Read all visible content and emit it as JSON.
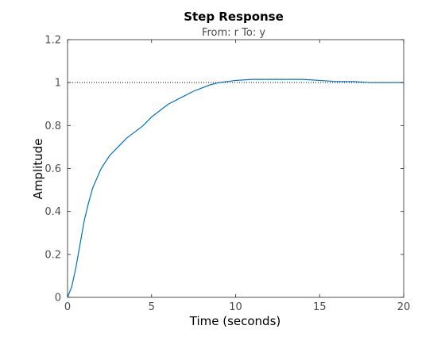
{
  "chart_data": {
    "type": "line",
    "title": "Step Response",
    "subtitle": "From: r  To: y",
    "xlabel": "Time (seconds)",
    "ylabel": "Amplitude",
    "xlim": [
      0,
      20
    ],
    "ylim": [
      0,
      1.2
    ],
    "xticks": [
      0,
      5,
      10,
      15,
      20
    ],
    "yticks": [
      0,
      0.2,
      0.4,
      0.6,
      0.8,
      1,
      1.2
    ],
    "xtick_labels": [
      "0",
      "5",
      "10",
      "15",
      "20"
    ],
    "ytick_labels": [
      "0",
      "0.2",
      "0.4",
      "0.6",
      "0.8",
      "1",
      "1.2"
    ],
    "grid": false,
    "reference_line": {
      "y": 1,
      "style": "dotted"
    },
    "series": [
      {
        "color": "#0072BD",
        "x": [
          0,
          0.25,
          0.5,
          0.75,
          1,
          1.25,
          1.5,
          2,
          2.5,
          3,
          3.5,
          4,
          4.5,
          5,
          5.5,
          6,
          6.5,
          7,
          7.5,
          8,
          8.5,
          9,
          9.5,
          10,
          11,
          12,
          13,
          14,
          15,
          16,
          17,
          18,
          19,
          20
        ],
        "y": [
          0,
          0.05,
          0.14,
          0.25,
          0.36,
          0.44,
          0.51,
          0.6,
          0.66,
          0.7,
          0.74,
          0.77,
          0.8,
          0.84,
          0.87,
          0.9,
          0.92,
          0.94,
          0.96,
          0.975,
          0.99,
          1.0,
          1.005,
          1.01,
          1.015,
          1.015,
          1.015,
          1.015,
          1.01,
          1.005,
          1.005,
          1.0,
          1.0,
          1.0
        ]
      }
    ]
  },
  "colors": {
    "axes": "#262626",
    "tick_text": "#4d4d4d",
    "line": "#0072BD"
  }
}
